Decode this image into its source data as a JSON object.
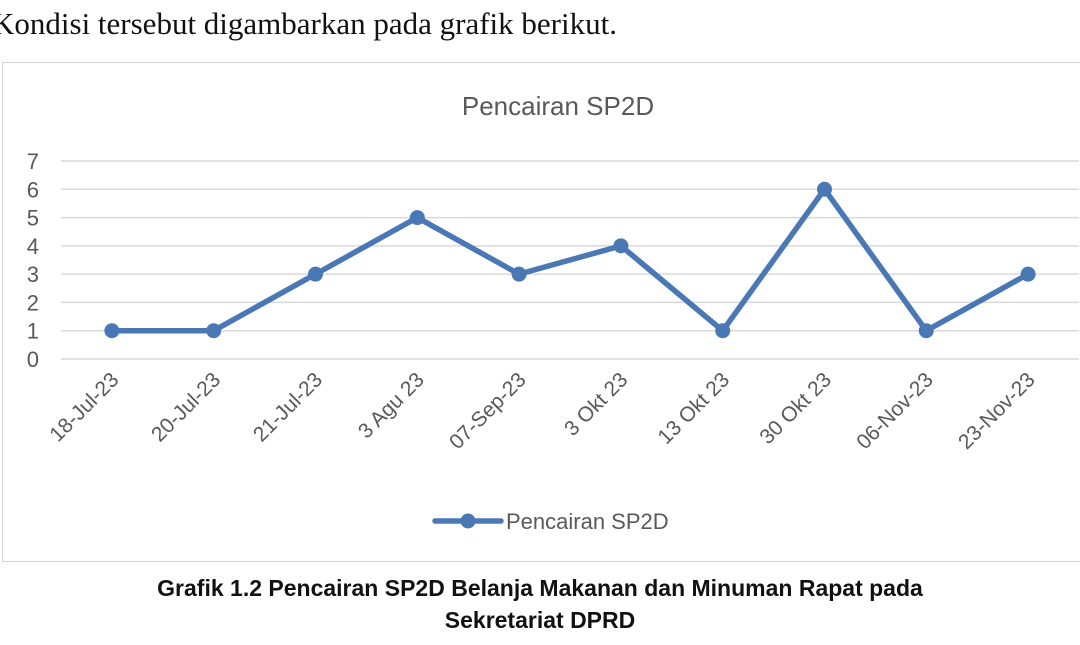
{
  "intro_text": "Kondisi tersebut digambarkan pada grafik berikut.",
  "chart_data": {
    "type": "line",
    "title": "Pencairan SP2D",
    "categories": [
      "18-Jul-23",
      "20-Jul-23",
      "21-Jul-23",
      "3 Agu 23",
      "07-Sep-23",
      "3 Okt 23",
      "13 Okt 23",
      "30 Okt 23",
      "06-Nov-23",
      "23-Nov-23"
    ],
    "series": [
      {
        "name": "Pencairan SP2D",
        "values": [
          1,
          1,
          3,
          5,
          3,
          4,
          1,
          6,
          1,
          3
        ],
        "color": "#4a78b5"
      }
    ],
    "yticks": [
      "0",
      "1",
      "2",
      "3",
      "4",
      "5",
      "6",
      "7"
    ],
    "ylim": [
      0,
      7
    ],
    "grid": true,
    "legend_position": "bottom"
  },
  "caption": {
    "line1": "Grafik 1.2 Pencairan SP2D Belanja Makanan dan Minuman Rapat pada",
    "line2": "Sekretariat DPRD"
  }
}
